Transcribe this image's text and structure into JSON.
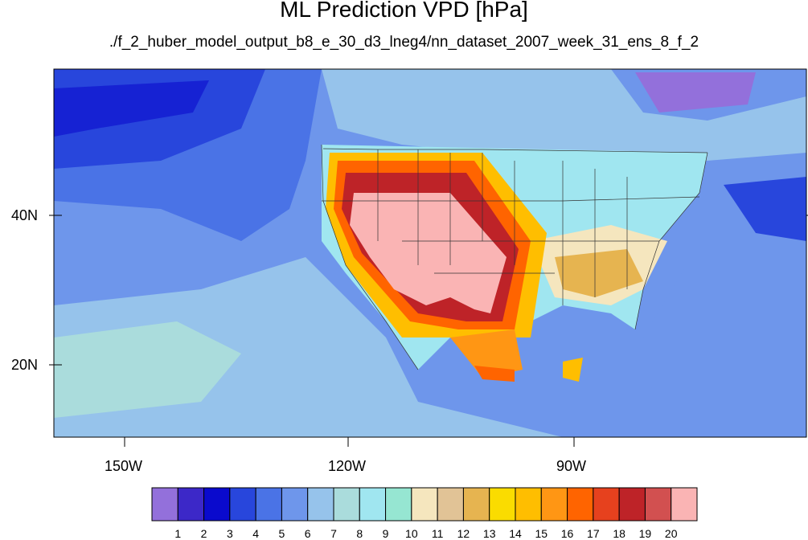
{
  "title": "ML Prediction VPD [hPa]",
  "subtitle": "./f_2_huber_model_output_b8_e_30_d3_lneg4/nn_dataset_2007_week_31_ens_8_f_2",
  "axes": {
    "lat_labels": [
      "40N",
      "20N"
    ],
    "lon_labels": [
      "150W",
      "120W",
      "90W"
    ]
  },
  "colorbar": {
    "labels": [
      "1",
      "2",
      "3",
      "4",
      "5",
      "6",
      "7",
      "8",
      "9",
      "10",
      "11",
      "12",
      "13",
      "14",
      "15",
      "16",
      "17",
      "18",
      "19",
      "20"
    ],
    "colors": [
      "#9370db",
      "#3c28c8",
      "#0a0acd",
      "#2846dc",
      "#4a73e6",
      "#6e96eb",
      "#96c3eb",
      "#aadcdc",
      "#a0e6f0",
      "#96e6d2",
      "#f5e6be",
      "#e1c396",
      "#e6b450",
      "#fadc00",
      "#ffbe00",
      "#ff9614",
      "#ff6400",
      "#e6411e",
      "#be2328",
      "#d25050",
      "#fab4b4"
    ]
  }
}
